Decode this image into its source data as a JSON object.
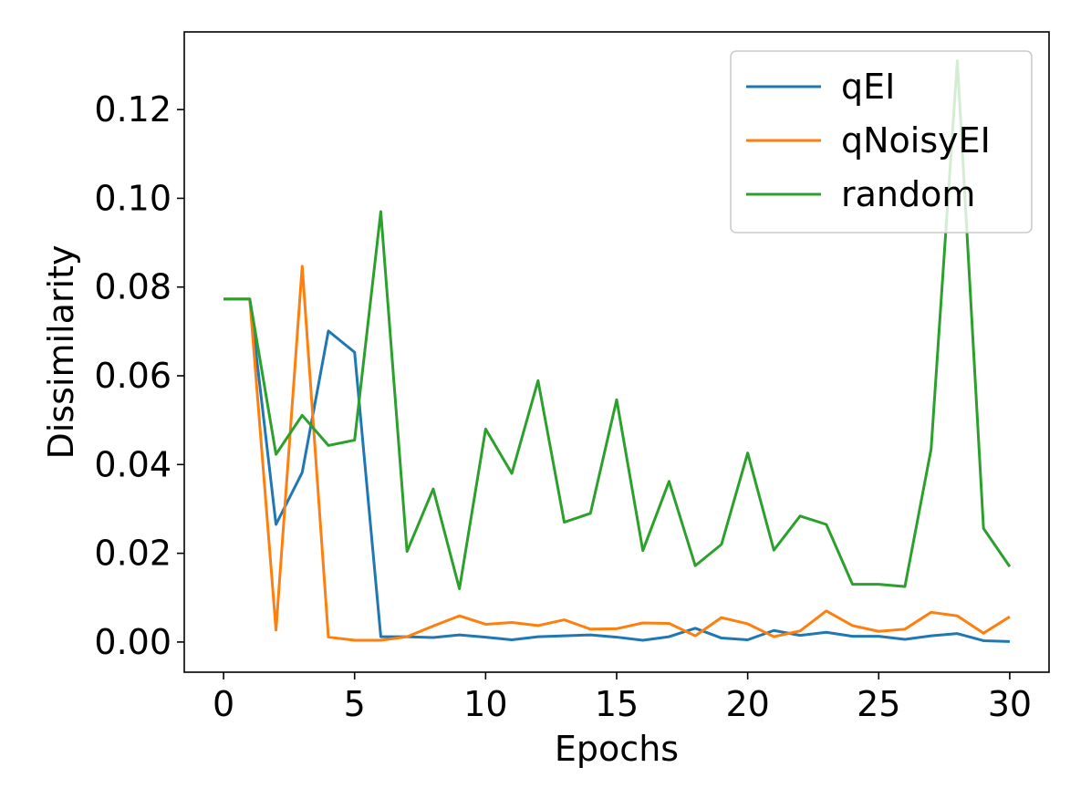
{
  "chart_data": {
    "type": "line",
    "title": "",
    "xlabel": "Epochs",
    "ylabel": "Dissimilarity",
    "xlim": [
      -1.5,
      31.5
    ],
    "ylim": [
      -0.0068,
      0.1375
    ],
    "xticks": [
      0,
      5,
      10,
      15,
      20,
      25,
      30
    ],
    "xtick_labels": [
      "0",
      "5",
      "10",
      "15",
      "20",
      "25",
      "30"
    ],
    "yticks": [
      0.0,
      0.02,
      0.04,
      0.06,
      0.08,
      0.1,
      0.12
    ],
    "ytick_labels": [
      "0.00",
      "0.02",
      "0.04",
      "0.06",
      "0.08",
      "0.10",
      "0.12"
    ],
    "grid": false,
    "legend_position": "top-right",
    "x": [
      0,
      1,
      2,
      3,
      4,
      5,
      6,
      7,
      8,
      9,
      10,
      11,
      12,
      13,
      14,
      15,
      16,
      17,
      18,
      19,
      20,
      21,
      22,
      23,
      24,
      25,
      26,
      27,
      28,
      29,
      30
    ],
    "series": [
      {
        "name": "qEI",
        "color": "#1f77b4",
        "values": [
          0.0773,
          0.0773,
          0.0265,
          0.0382,
          0.0701,
          0.0653,
          0.0012,
          0.0012,
          0.001,
          0.0016,
          0.0011,
          0.0005,
          0.0012,
          0.0014,
          0.0016,
          0.0011,
          0.0004,
          0.0012,
          0.0031,
          0.0009,
          0.0005,
          0.0026,
          0.0015,
          0.0022,
          0.0013,
          0.0013,
          0.0006,
          0.0014,
          0.0019,
          0.0003,
          0.0001
        ]
      },
      {
        "name": "qNoisyEI",
        "color": "#ff7f0e",
        "values": [
          0.0773,
          0.0773,
          0.0027,
          0.0847,
          0.0011,
          0.0004,
          0.0004,
          0.0012,
          0.0036,
          0.0059,
          0.004,
          0.0044,
          0.0037,
          0.005,
          0.0029,
          0.003,
          0.0043,
          0.0042,
          0.0014,
          0.0055,
          0.0041,
          0.0012,
          0.0025,
          0.007,
          0.0037,
          0.0024,
          0.0029,
          0.0067,
          0.0059,
          0.002,
          0.0057
        ]
      },
      {
        "name": "random",
        "color": "#2ca02c",
        "values": [
          0.0773,
          0.0773,
          0.0423,
          0.0511,
          0.0443,
          0.0455,
          0.097,
          0.0204,
          0.0345,
          0.012,
          0.048,
          0.038,
          0.0589,
          0.027,
          0.029,
          0.0546,
          0.0206,
          0.0362,
          0.0172,
          0.022,
          0.0426,
          0.0207,
          0.0284,
          0.0265,
          0.013,
          0.013,
          0.0125,
          0.0435,
          0.131,
          0.0256,
          0.017
        ]
      }
    ]
  }
}
